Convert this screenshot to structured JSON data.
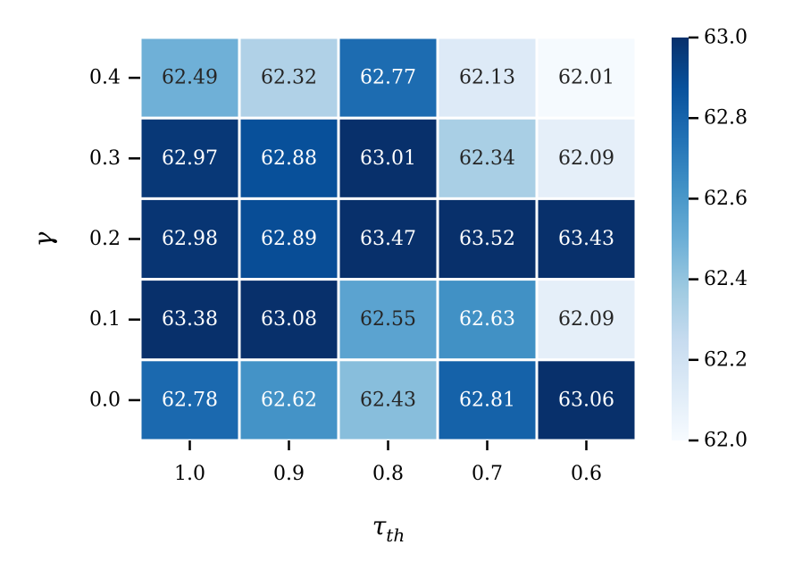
{
  "chart_data": {
    "type": "heatmap",
    "title": "",
    "xlabel_main": "τ",
    "xlabel_sub": "th",
    "ylabel": "γ",
    "x_categories": [
      "1.0",
      "0.9",
      "0.8",
      "0.7",
      "0.6"
    ],
    "y_categories": [
      "0.4",
      "0.3",
      "0.2",
      "0.1",
      "0.0"
    ],
    "values": [
      [
        "62.49",
        "62.32",
        "62.77",
        "62.13",
        "62.01"
      ],
      [
        "62.97",
        "62.88",
        "63.01",
        "62.34",
        "62.09"
      ],
      [
        "62.98",
        "62.89",
        "63.47",
        "63.52",
        "63.43"
      ],
      [
        "63.38",
        "63.08",
        "62.55",
        "62.63",
        "62.09"
      ],
      [
        "62.78",
        "62.62",
        "62.43",
        "62.81",
        "63.06"
      ]
    ],
    "color_range": [
      62.0,
      63.0
    ],
    "colormap": "Blues",
    "colorbar_ticks": [
      "63.0",
      "62.8",
      "62.6",
      "62.4",
      "62.2",
      "62.0"
    ],
    "grid_line_color": "#ffffff"
  }
}
